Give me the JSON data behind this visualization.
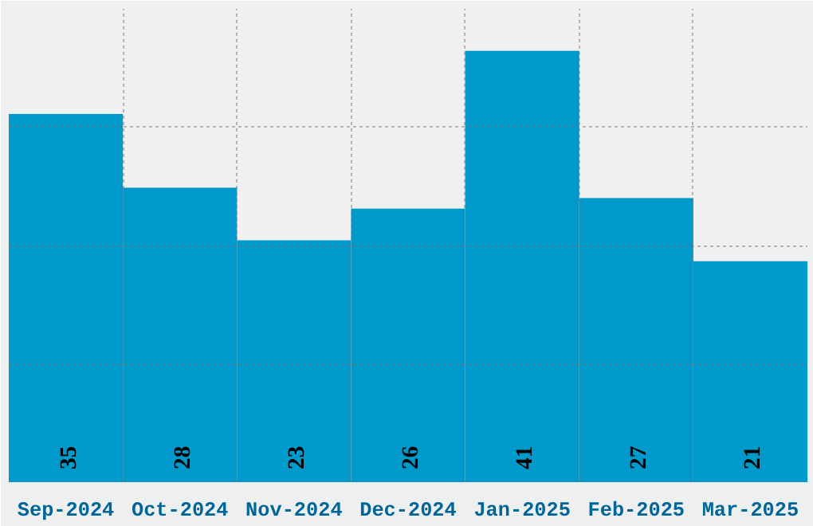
{
  "chart_data": {
    "type": "bar",
    "categories": [
      "Sep-2024",
      "Oct-2024",
      "Nov-2024",
      "Dec-2024",
      "Jan-2025",
      "Feb-2025",
      "Mar-2025"
    ],
    "values": [
      35,
      28,
      23,
      26,
      41,
      27,
      21
    ],
    "color": "#0099cc",
    "data_labels": true,
    "grid": true,
    "tick_labels": "x",
    "ylim": [
      0,
      45
    ],
    "yticks": [
      {
        "value": 11.25,
        "label": null
      },
      {
        "value": 22.5,
        "label": null
      },
      {
        "value": 33.75,
        "label": null
      }
    ]
  }
}
